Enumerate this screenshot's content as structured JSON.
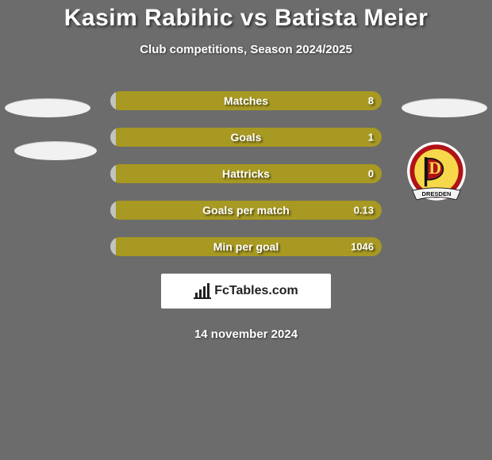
{
  "background_color": "#6c6c6c",
  "title": "Kasim Rabihic vs Batista Meier",
  "subtitle": "Club competitions, Season 2024/2025",
  "date": "14 november 2024",
  "brand": "FcTables.com",
  "left_color": "#c1c5bd",
  "right_color": "#a79922",
  "stat_bar_width": 342,
  "stat_bar_height": 24,
  "label_fontsize": 14,
  "title_fontsize": 30,
  "rows": [
    {
      "label": "Matches",
      "left_val": "",
      "right_val": "8",
      "left_pct": 2
    },
    {
      "label": "Goals",
      "left_val": "",
      "right_val": "1",
      "left_pct": 2
    },
    {
      "label": "Hattricks",
      "left_val": "",
      "right_val": "0",
      "left_pct": 2
    },
    {
      "label": "Goals per match",
      "left_val": "",
      "right_val": "0.13",
      "left_pct": 2
    },
    {
      "label": "Min per goal",
      "left_val": "",
      "right_val": "1046",
      "left_pct": 2
    }
  ],
  "crest": {
    "outer": "#ffffff",
    "ring": "#b11217",
    "inner": "#f7d84a",
    "letter_bg": "#b11217",
    "letter": "D",
    "banner_text": "DRESDEN"
  }
}
